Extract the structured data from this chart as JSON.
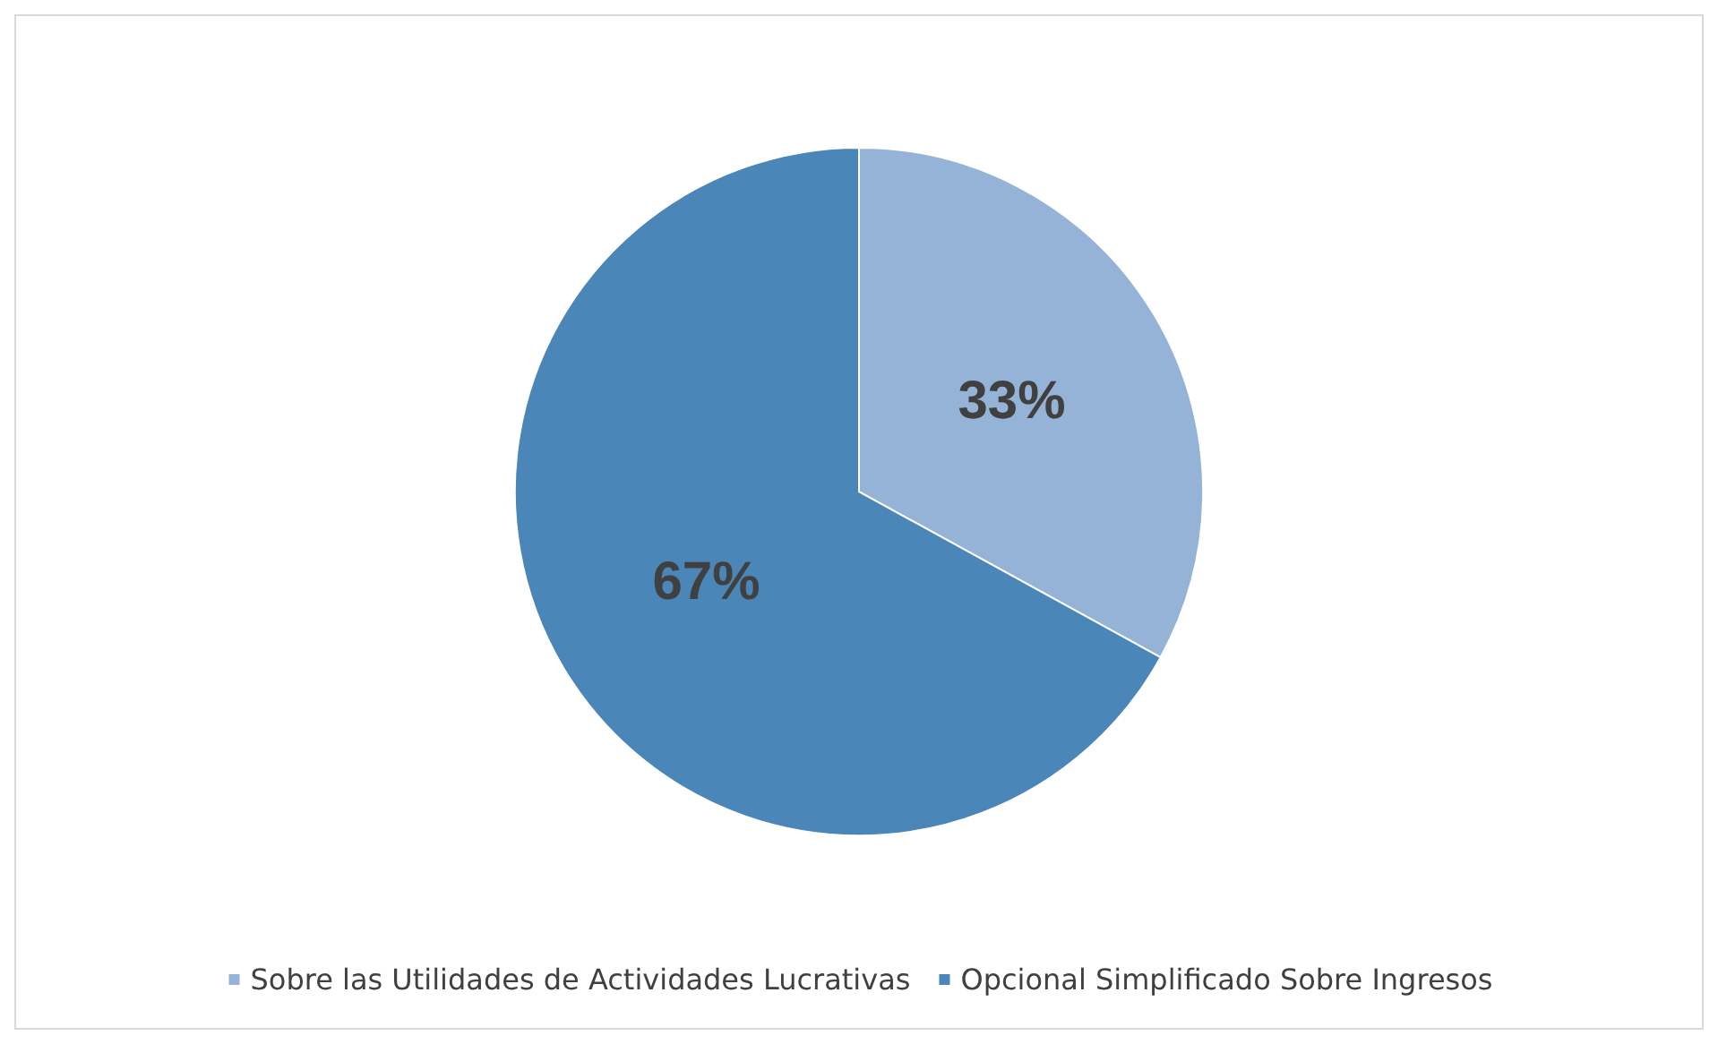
{
  "chart_data": {
    "type": "pie",
    "categories": [
      "Sobre las Utilidades de Actividades Lucrativas",
      "Opcional Simplificado Sobre Ingresos"
    ],
    "values": [
      33,
      67
    ],
    "colors": [
      "#95b3d7",
      "#4a86b8"
    ],
    "value_labels": [
      "33%",
      "67%"
    ],
    "legend": "bottom"
  }
}
